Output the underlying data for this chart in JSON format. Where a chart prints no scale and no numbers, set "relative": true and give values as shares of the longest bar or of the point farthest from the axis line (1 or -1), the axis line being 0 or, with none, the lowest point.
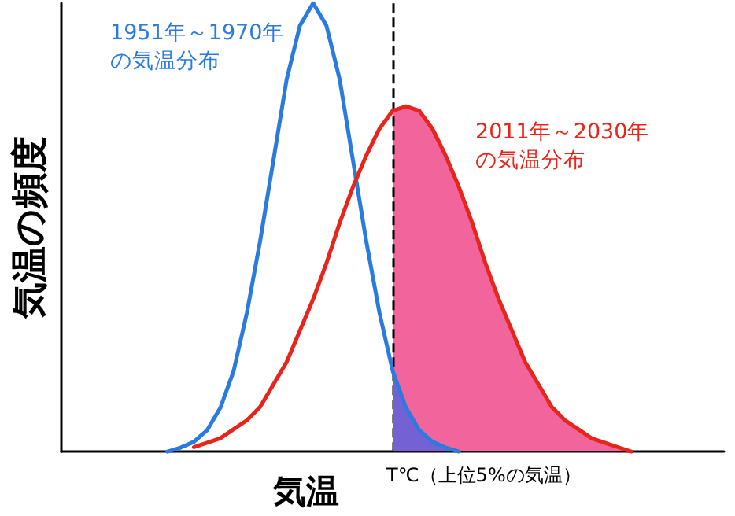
{
  "chart_data": {
    "type": "line",
    "relative": true,
    "xlabel": "気温",
    "ylabel": "気温の頻度",
    "grid": false,
    "legend": false,
    "annotations": [
      "T℃（上位5%の気温）"
    ],
    "categories": [
      null,
      null,
      null,
      null,
      null,
      null,
      null,
      null,
      null,
      null,
      null,
      null,
      null,
      null,
      null,
      null,
      null,
      null,
      null,
      null,
      null,
      null,
      null,
      null,
      null,
      null,
      null,
      null,
      null,
      null,
      null,
      null,
      null,
      null,
      null,
      null,
      null,
      null,
      null,
      null,
      null,
      null,
      null,
      null,
      null,
      null,
      null,
      null,
      null,
      null,
      null
    ],
    "series": [
      {
        "name": "1951年～1970年の気温分布",
        "color": "#2a7be0",
        "values": [
          null,
          null,
          null,
          null,
          null,
          null,
          null,
          null,
          0,
          0.009,
          0.022,
          0.048,
          0.098,
          0.18,
          0.31,
          0.47,
          0.65,
          0.83,
          0.95,
          1,
          0.95,
          0.83,
          0.65,
          0.47,
          0.31,
          0.18,
          0.098,
          0.048,
          0.022,
          0.009,
          0,
          null,
          null,
          null,
          null,
          null,
          null,
          null,
          null,
          null,
          null,
          null,
          null,
          null,
          null,
          null,
          null,
          null,
          null,
          null,
          null
        ]
      },
      {
        "name": "2011年～2030年の気温分布",
        "color": "#e8251b",
        "values": [
          null,
          null,
          null,
          null,
          null,
          null,
          null,
          null,
          null,
          null,
          0.01,
          0.02,
          0.03,
          0.05,
          0.07,
          0.1,
          0.15,
          0.2,
          0.27,
          0.34,
          0.42,
          0.51,
          0.59,
          0.66,
          0.72,
          0.76,
          0.77,
          0.76,
          0.72,
          0.66,
          0.59,
          0.51,
          0.42,
          0.34,
          0.27,
          0.2,
          0.15,
          0.1,
          0.07,
          0.05,
          0.03,
          0.02,
          0.01,
          0,
          null,
          null,
          null,
          null,
          null,
          null,
          null
        ]
      },
      {
        "type": "area",
        "color": "#f2649c",
        "values": [
          null,
          null,
          null,
          null,
          null,
          null,
          null,
          null,
          null,
          null,
          null,
          null,
          null,
          null,
          null,
          null,
          null,
          null,
          null,
          null,
          null,
          null,
          null,
          null,
          null,
          0.76,
          0.77,
          0.76,
          0.72,
          0.66,
          0.59,
          0.51,
          0.42,
          0.34,
          0.27,
          0.2,
          0.15,
          0.1,
          0.07,
          0.05,
          0.03,
          0.02,
          0.01,
          0,
          null,
          null,
          null,
          null,
          null,
          null,
          null
        ]
      },
      {
        "type": "area",
        "color": "#7462d4",
        "values": [
          null,
          null,
          null,
          null,
          null,
          null,
          null,
          null,
          null,
          null,
          null,
          null,
          null,
          null,
          null,
          null,
          null,
          null,
          null,
          null,
          null,
          null,
          null,
          null,
          null,
          0.18,
          0.098,
          0.048,
          0.022,
          0.009,
          0,
          null,
          null,
          null,
          null,
          null,
          null,
          null,
          null,
          null,
          null,
          null,
          null,
          null,
          null,
          null,
          null,
          null,
          null,
          null,
          null
        ]
      }
    ]
  }
}
